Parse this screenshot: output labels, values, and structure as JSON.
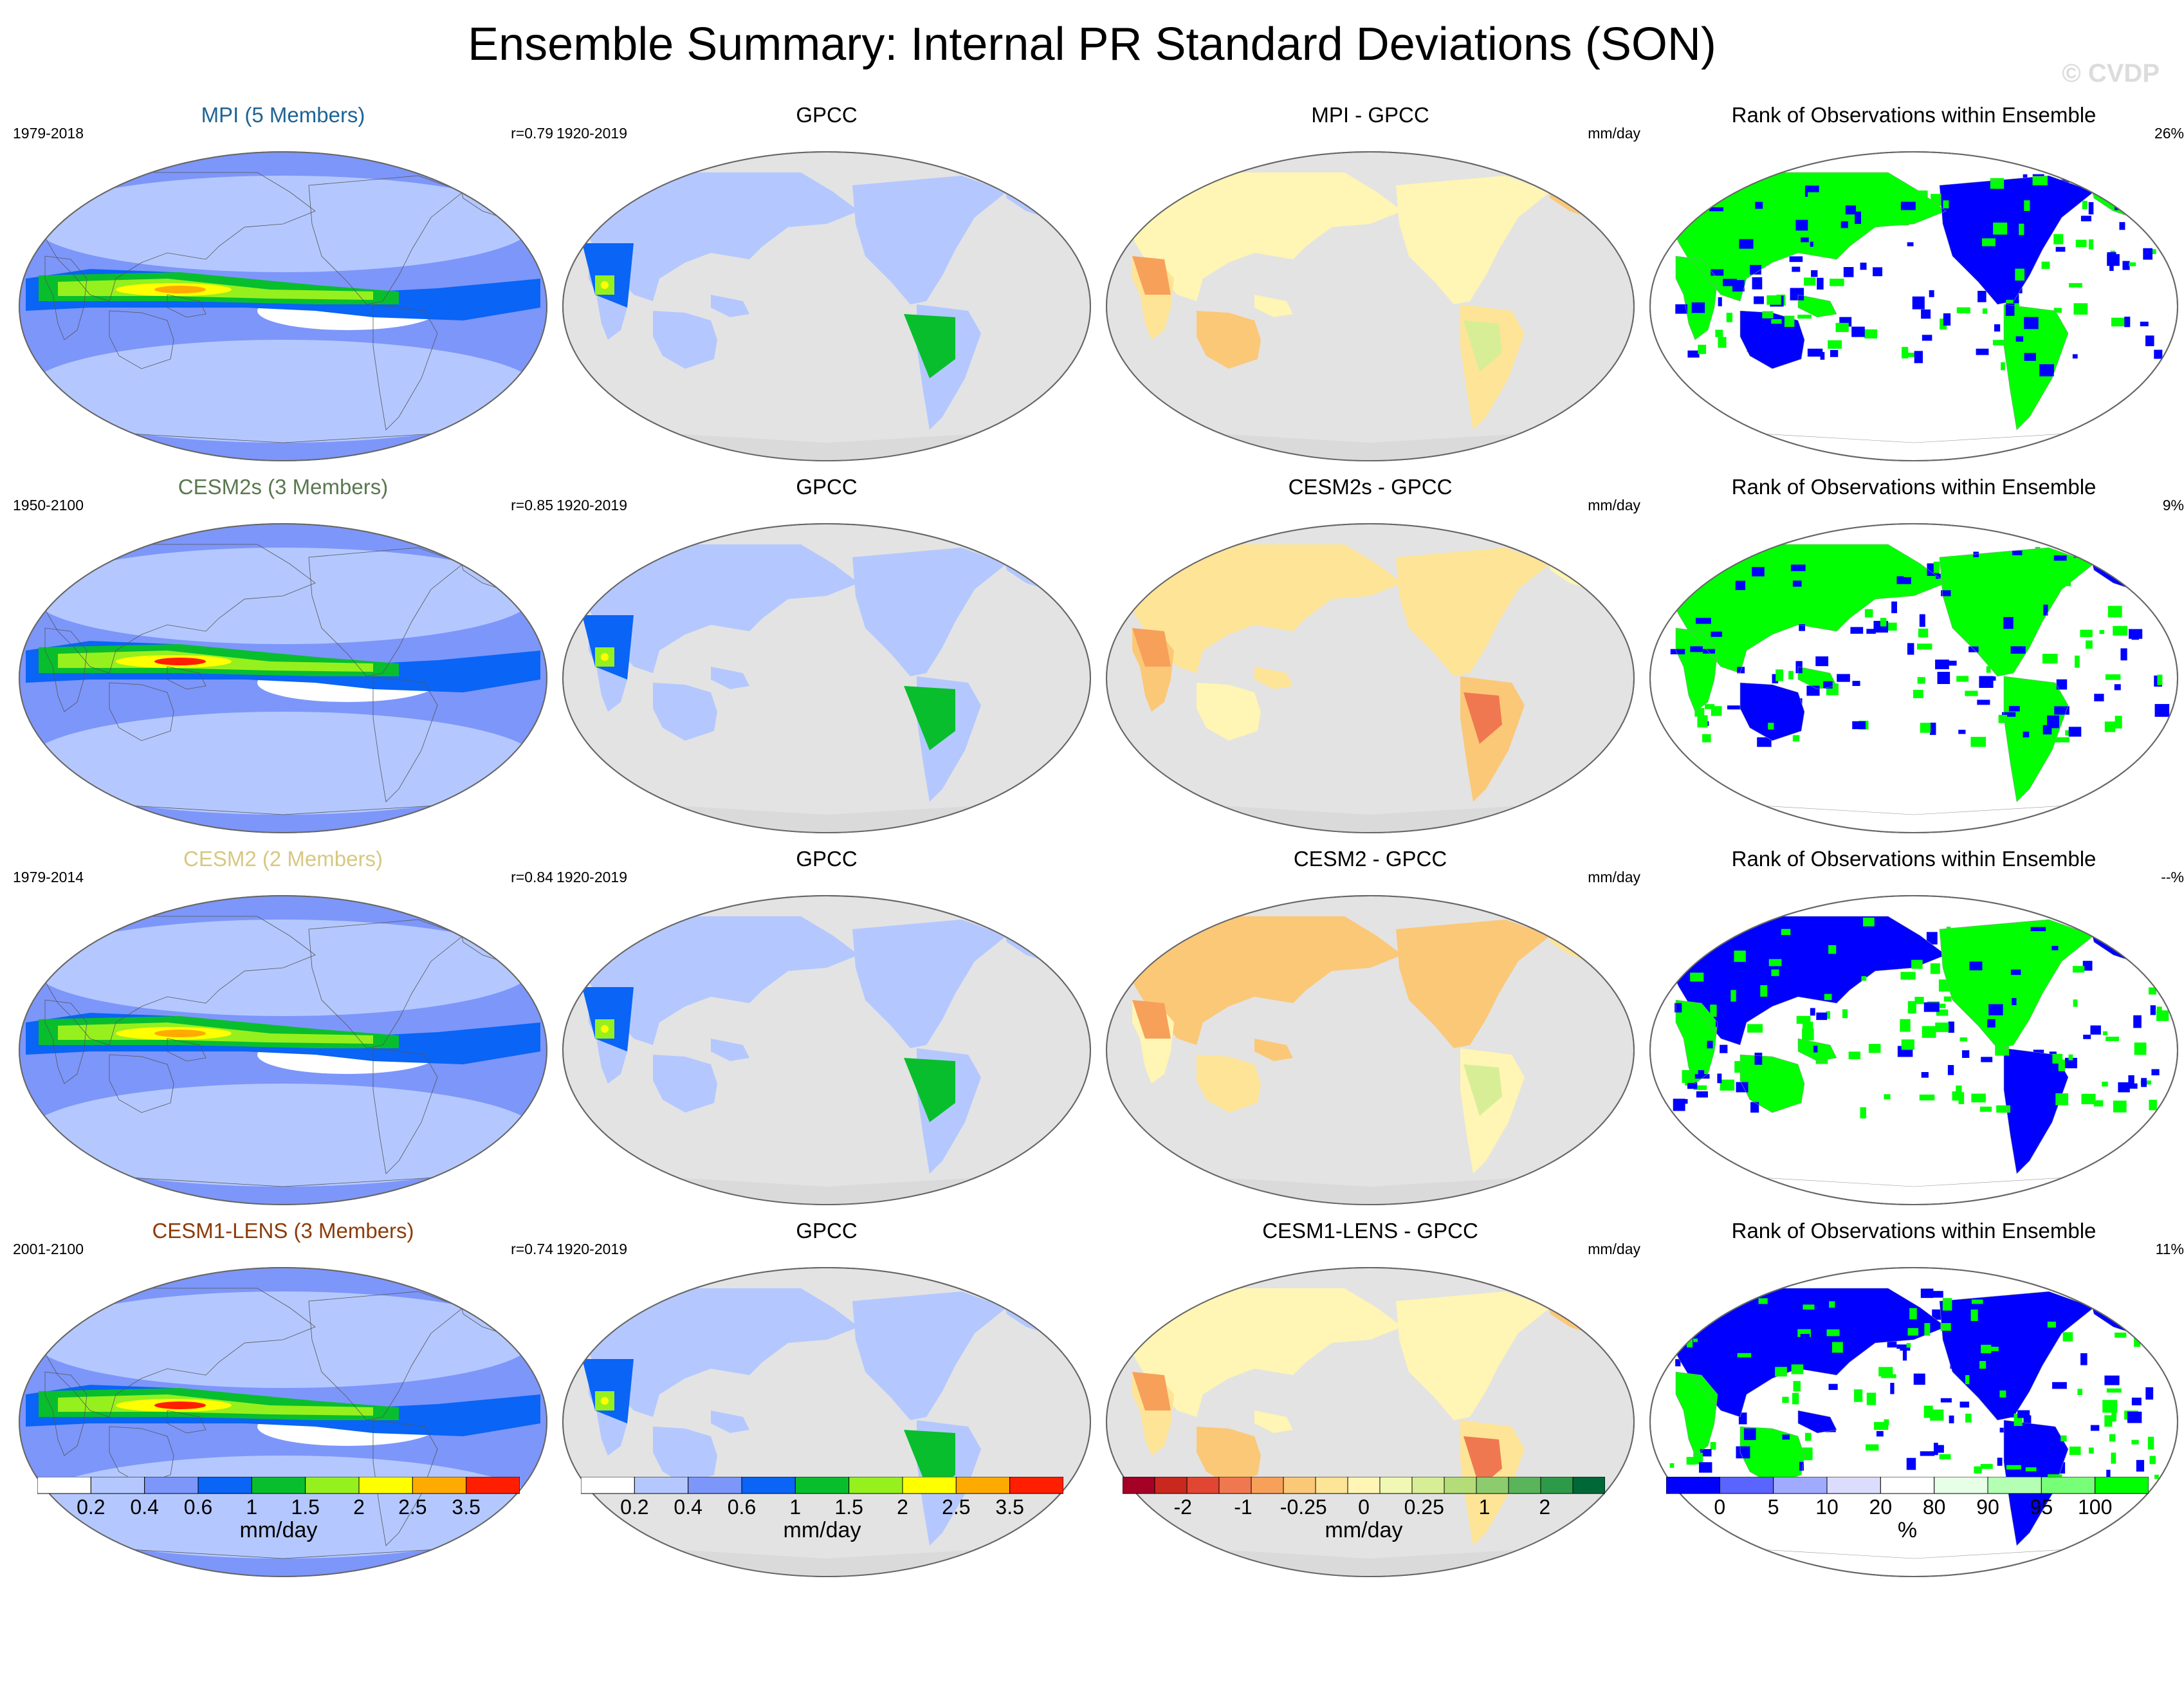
{
  "title": "Ensemble Summary: Internal PR Standard Deviations (SON)",
  "watermark": "© CVDP",
  "colors": {
    "ocean": "#e3e3e3",
    "land": "#dadada",
    "pr_scale": [
      "#ffffff",
      "#b4c8ff",
      "#7d96fa",
      "#0a64f5",
      "#08be2d",
      "#96f01e",
      "#ffff00",
      "#ffaa00",
      "#ff1e00"
    ],
    "diff_scale": [
      "#a50026",
      "#c8281e",
      "#e14632",
      "#f07850",
      "#f7a05a",
      "#fbc878",
      "#fde496",
      "#fff5b4",
      "#f0f8b4",
      "#d7ee96",
      "#b4dc78",
      "#8ccc6e",
      "#5ab45a",
      "#2d9a4a",
      "#006837"
    ],
    "rank_scale": [
      "#0000ff",
      "#5a64ff",
      "#a0aaff",
      "#dcdcff",
      "#ffffff",
      "#e6ffe6",
      "#b4ffb4",
      "#78ff78",
      "#00ff00"
    ]
  },
  "rows": [
    {
      "name": "MPI (5 Members)",
      "name_color": "#1e6496",
      "period": "1979-2018",
      "r": "r=0.79",
      "obs_period": "1920-2019",
      "obs": "GPCC",
      "diff_title": "MPI - GPCC",
      "diff_unit": "mm/day",
      "rank_title": "Rank of Observations within Ensemble",
      "rank_pct": "26%"
    },
    {
      "name": "CESM2s (3 Members)",
      "name_color": "#5a7850",
      "period": "1950-2100",
      "r": "r=0.85",
      "obs_period": "1920-2019",
      "obs": "GPCC",
      "diff_title": "CESM2s - GPCC",
      "diff_unit": "mm/day",
      "rank_title": "Rank of Observations within Ensemble",
      "rank_pct": "9%"
    },
    {
      "name": "CESM2 (2 Members)",
      "name_color": "#d7c882",
      "period": "1979-2014",
      "r": "r=0.84",
      "obs_period": "1920-2019",
      "obs": "GPCC",
      "diff_title": "CESM2 - GPCC",
      "diff_unit": "mm/day",
      "rank_title": "Rank of Observations within Ensemble",
      "rank_pct": "--%"
    },
    {
      "name": "CESM1-LENS (3 Members)",
      "name_color": "#8c3c0a",
      "period": "2001-2100",
      "r": "r=0.74",
      "obs_period": "1920-2019",
      "obs": "GPCC",
      "diff_title": "CESM1-LENS - GPCC",
      "diff_unit": "mm/day",
      "rank_title": "Rank of Observations within Ensemble",
      "rank_pct": "11%"
    }
  ],
  "colorbars": [
    {
      "labels": [
        "0.2",
        "0.4",
        "0.6",
        "1",
        "1.5",
        "2",
        "2.5",
        "3.5"
      ],
      "unit": "mm/day"
    },
    {
      "labels": [
        "0.2",
        "0.4",
        "0.6",
        "1",
        "1.5",
        "2",
        "2.5",
        "3.5"
      ],
      "unit": "mm/day"
    },
    {
      "labels": [
        "-2",
        "-1",
        "-0.25",
        "0",
        "0.25",
        "1",
        "2"
      ],
      "unit": "mm/day"
    },
    {
      "labels": [
        "0",
        "5",
        "10",
        "20",
        "80",
        "90",
        "95",
        "100"
      ],
      "unit": "%"
    }
  ],
  "chart_data": [
    {
      "type": "heatmap",
      "title": "MPI (5 Members)",
      "note": "Global map of interannual precipitation standard deviation",
      "legend": "mm/day"
    },
    {
      "type": "heatmap",
      "title": "GPCC",
      "note": "Observed land precipitation standard deviation",
      "legend": "mm/day"
    },
    {
      "type": "heatmap",
      "title": "MPI - GPCC",
      "note": "Model minus observations difference",
      "legend": "mm/day"
    },
    {
      "type": "heatmap",
      "title": "Rank of Observations within Ensemble",
      "legend": "%"
    }
  ]
}
